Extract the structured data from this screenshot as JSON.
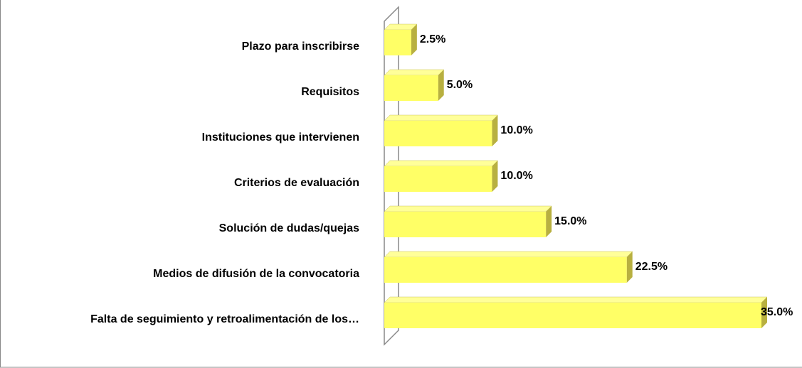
{
  "chart_data": {
    "type": "bar3d-horizontal",
    "categories": [
      "Plazo para inscribirse",
      "Requisitos",
      "Instituciones que intervienen",
      "Criterios de evaluación",
      "Solución de dudas/quejas",
      "Medios de difusión de la convocatoria",
      "Falta de seguimiento y retroalimentación de los…"
    ],
    "values": [
      2.5,
      5,
      10,
      10,
      15,
      22.5,
      35
    ],
    "value_labels": [
      "2.5%",
      "5.0%",
      "10.0%",
      "10.0%",
      "15.0%",
      "22.5%",
      "35.0%"
    ],
    "color": "#ffff66"
  }
}
